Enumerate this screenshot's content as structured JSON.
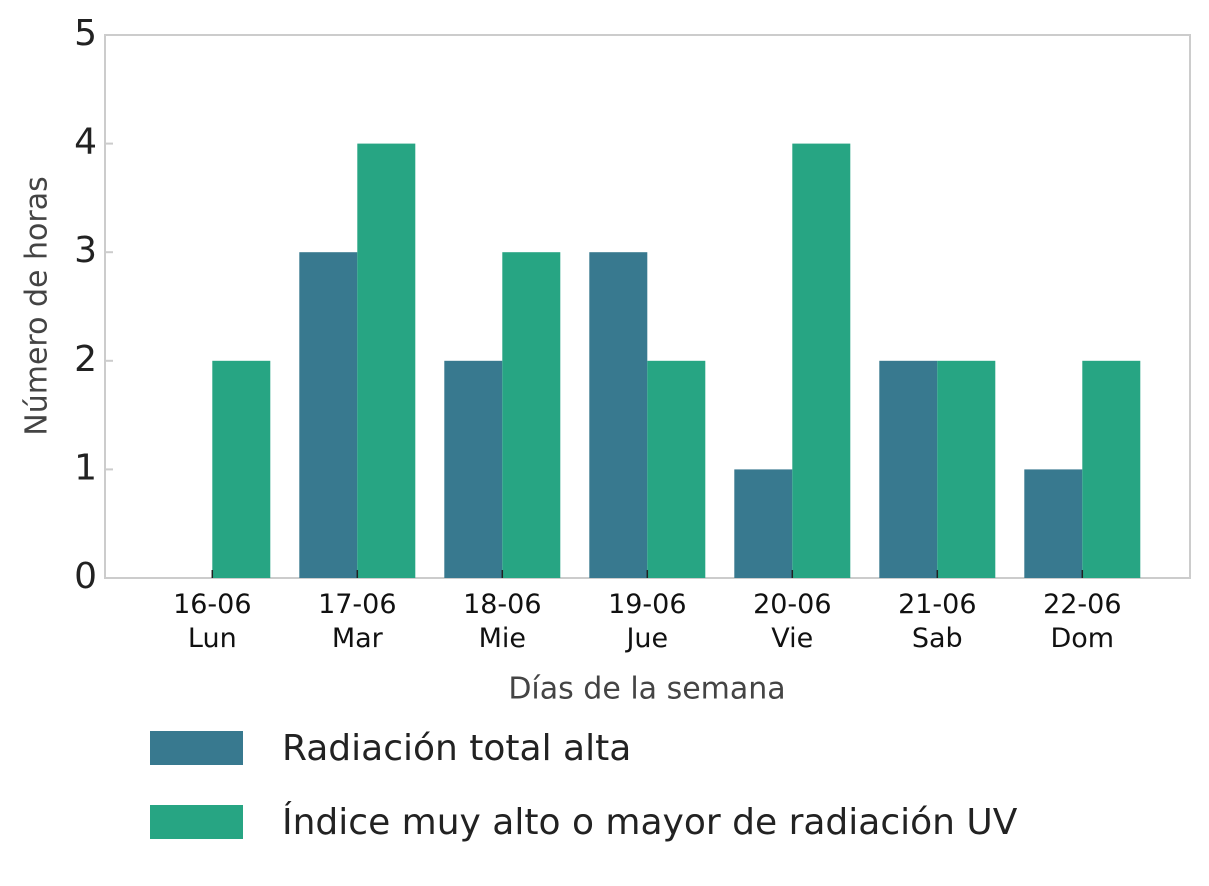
{
  "chart_data": {
    "type": "bar",
    "x_label": "Días de la semana",
    "y_label": "Número de horas",
    "categories": [
      "16-06\nLun",
      "17-06\nMar",
      "18-06\nMie",
      "19-06\nJue",
      "20-06\nVie",
      "21-06\nSab",
      "22-06\nDom"
    ],
    "series": [
      {
        "name": "Radiación total alta",
        "color": "#38798f",
        "values": [
          0,
          3,
          2,
          3,
          1,
          2,
          1
        ]
      },
      {
        "name": "Índice muy alto o mayor de radiación UV",
        "color": "#27a583",
        "values": [
          2,
          4,
          3,
          2,
          4,
          2,
          2
        ]
      }
    ],
    "ylim": [
      0,
      5
    ],
    "yticks": [
      0,
      1,
      2,
      3,
      4,
      5
    ],
    "grid": false
  }
}
